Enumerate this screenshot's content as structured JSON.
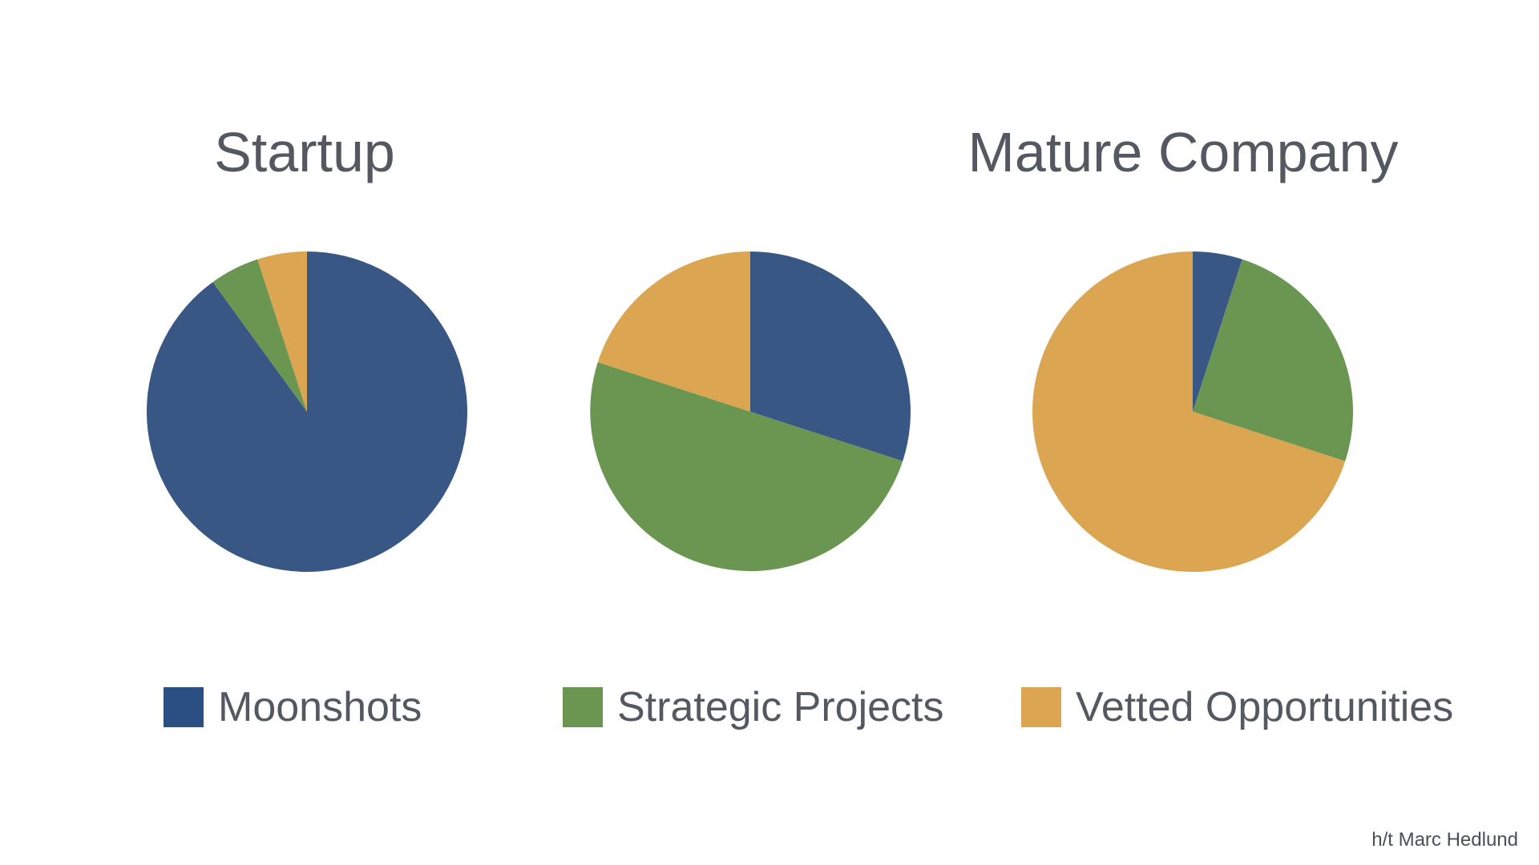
{
  "chart_data": [
    {
      "type": "pie",
      "title": "Startup",
      "categories": [
        "Moonshots",
        "Strategic Projects",
        "Vetted Opportunities"
      ],
      "values": [
        90,
        5,
        5
      ],
      "colors": [
        "#385785",
        "#6a9652",
        "#dca551"
      ]
    },
    {
      "type": "pie",
      "title": "",
      "categories": [
        "Moonshots",
        "Strategic Projects",
        "Vetted Opportunities"
      ],
      "values": [
        30,
        50,
        20
      ],
      "colors": [
        "#385785",
        "#6a9652",
        "#dca551"
      ]
    },
    {
      "type": "pie",
      "title": "Mature Company",
      "categories": [
        "Moonshots",
        "Strategic Projects",
        "Vetted Opportunities"
      ],
      "values": [
        5,
        25,
        70
      ],
      "colors": [
        "#385785",
        "#6a9652",
        "#dca551"
      ]
    }
  ],
  "legend": [
    {
      "label": "Moonshots",
      "color": "#2a5083"
    },
    {
      "label": "Strategic Projects",
      "color": "#6a9652"
    },
    {
      "label": "Vetted Opportunities",
      "color": "#dca551"
    }
  ],
  "credit": "h/t Marc Hedlund"
}
